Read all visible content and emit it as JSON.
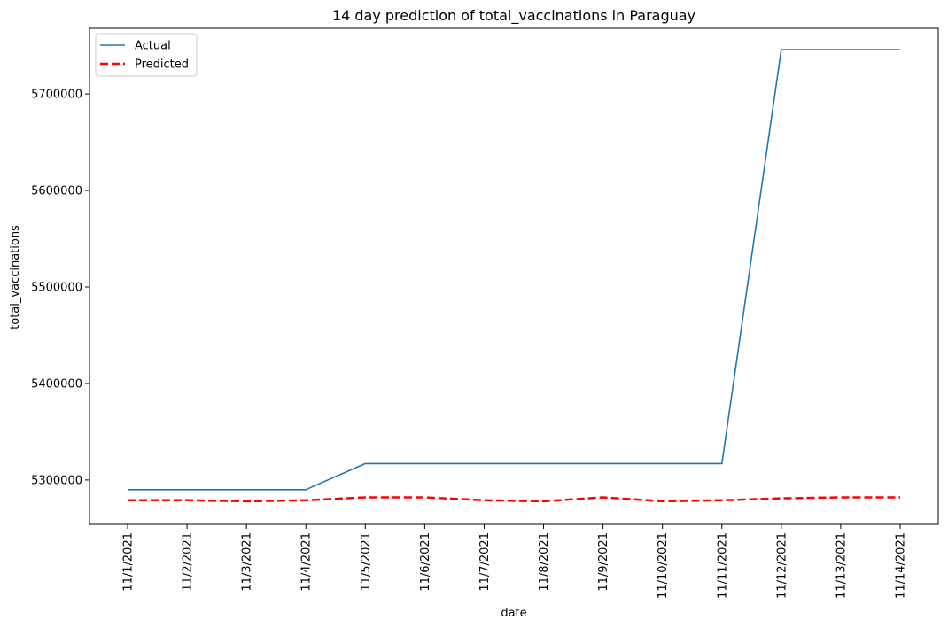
{
  "chart_data": {
    "type": "line",
    "title": "14 day prediction of total_vaccinations in Paraguay",
    "xlabel": "date",
    "ylabel": "total_vaccinations",
    "categories": [
      "11/1/2021",
      "11/2/2021",
      "11/3/2021",
      "11/4/2021",
      "11/5/2021",
      "11/6/2021",
      "11/7/2021",
      "11/8/2021",
      "11/9/2021",
      "11/10/2021",
      "11/11/2021",
      "11/12/2021",
      "11/13/2021",
      "11/14/2021"
    ],
    "ylim": [
      5254000,
      5768000
    ],
    "yticks": [
      5300000,
      5400000,
      5500000,
      5600000,
      5700000
    ],
    "legend_position": "top-left",
    "grid": false,
    "series": [
      {
        "name": "Actual",
        "color": "#1f77b4",
        "style": "solid",
        "values": [
          5290000,
          5290000,
          5290000,
          5290000,
          5317000,
          5317000,
          5317000,
          5317000,
          5317000,
          5317000,
          5317000,
          5746000,
          5746000,
          5746000
        ]
      },
      {
        "name": "Predicted",
        "color": "#ff0000",
        "style": "dashed",
        "values": [
          5279000,
          5279000,
          5278000,
          5279000,
          5282000,
          5282000,
          5279000,
          5278000,
          5282000,
          5278000,
          5279000,
          5281000,
          5282000,
          5282000
        ]
      }
    ]
  }
}
